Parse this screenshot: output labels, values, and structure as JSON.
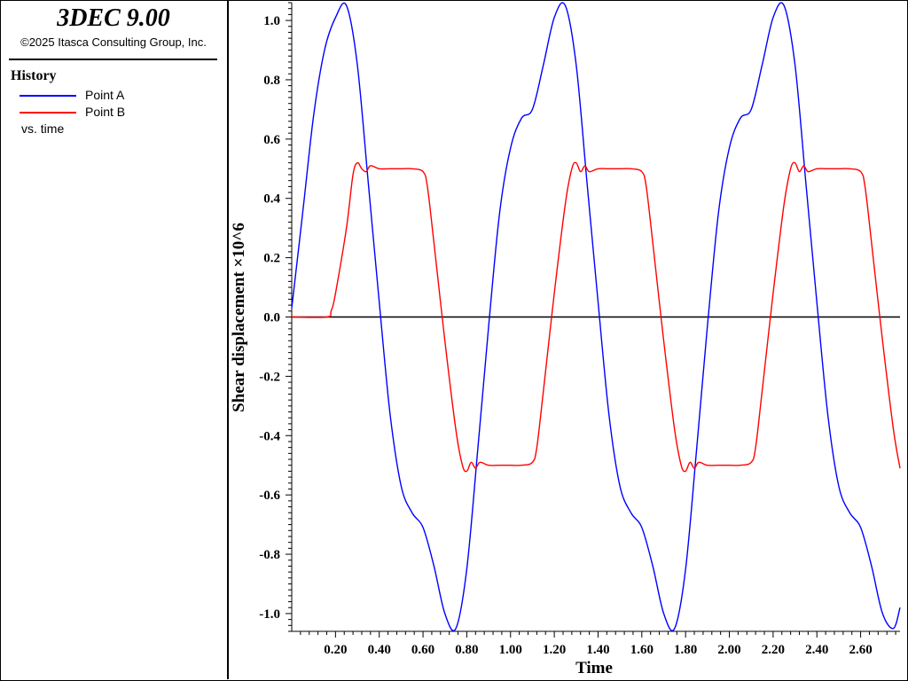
{
  "header": {
    "app_title": "3DEC 9.00",
    "copyright": "©2025 Itasca Consulting Group, Inc."
  },
  "legend": {
    "title": "History",
    "items": [
      {
        "label": "Point A",
        "color": "#0000ff"
      },
      {
        "label": "Point B",
        "color": "#ff0000"
      }
    ],
    "vs_label": "vs. time"
  },
  "chart_data": {
    "type": "line",
    "xlabel": "Time",
    "ylabel": "Shear displacement ×10^6",
    "xlim": [
      0.0,
      2.78
    ],
    "ylim": [
      -1.06,
      1.06
    ],
    "x_ticks": [
      "0.20",
      "0.40",
      "0.60",
      "0.80",
      "1.00",
      "1.20",
      "1.40",
      "1.60",
      "1.80",
      "2.00",
      "2.20",
      "2.40",
      "2.60"
    ],
    "y_ticks": [
      "1.0",
      "0.8",
      "0.6",
      "0.4",
      "0.2",
      "0.0",
      "-0.2",
      "-0.4",
      "-0.6",
      "-0.8",
      "-1.0"
    ],
    "zero_line": true,
    "grid": false,
    "series": [
      {
        "name": "Point A",
        "color": "#0000ff",
        "x": [
          0.0,
          0.05,
          0.1,
          0.15,
          0.2,
          0.25,
          0.3,
          0.35,
          0.4,
          0.45,
          0.5,
          0.55,
          0.6,
          0.65,
          0.7,
          0.75,
          0.8,
          0.85,
          0.9,
          0.95,
          1.0,
          1.05,
          1.1,
          1.15,
          1.2,
          1.25,
          1.3,
          1.35,
          1.4,
          1.45,
          1.5,
          1.55,
          1.6,
          1.65,
          1.7,
          1.75,
          1.8,
          1.85,
          1.9,
          1.95,
          2.0,
          2.05,
          2.1,
          2.15,
          2.2,
          2.25,
          2.3,
          2.35,
          2.4,
          2.45,
          2.5,
          2.55,
          2.6,
          2.65,
          2.7,
          2.75,
          2.78
        ],
        "values": [
          0.03,
          0.35,
          0.68,
          0.9,
          1.01,
          1.05,
          0.85,
          0.45,
          0.05,
          -0.33,
          -0.57,
          -0.66,
          -0.71,
          -0.84,
          -1.0,
          -1.05,
          -0.85,
          -0.45,
          -0.03,
          0.35,
          0.57,
          0.67,
          0.7,
          0.85,
          1.01,
          1.05,
          0.85,
          0.45,
          0.05,
          -0.33,
          -0.57,
          -0.66,
          -0.71,
          -0.84,
          -1.0,
          -1.05,
          -0.85,
          -0.45,
          -0.03,
          0.35,
          0.57,
          0.67,
          0.7,
          0.85,
          1.01,
          1.05,
          0.85,
          0.45,
          0.05,
          -0.33,
          -0.57,
          -0.66,
          -0.71,
          -0.84,
          -1.0,
          -1.05,
          -0.98
        ]
      },
      {
        "name": "Point B",
        "color": "#ff0000",
        "x": [
          0.0,
          0.16,
          0.18,
          0.2,
          0.25,
          0.28,
          0.3,
          0.32,
          0.34,
          0.36,
          0.4,
          0.45,
          0.5,
          0.55,
          0.6,
          0.62,
          0.65,
          0.7,
          0.75,
          0.78,
          0.8,
          0.82,
          0.84,
          0.86,
          0.9,
          0.95,
          1.0,
          1.05,
          1.1,
          1.12,
          1.15,
          1.2,
          1.25,
          1.28,
          1.3,
          1.32,
          1.34,
          1.36,
          1.4,
          1.45,
          1.5,
          1.55,
          1.6,
          1.62,
          1.65,
          1.7,
          1.75,
          1.78,
          1.8,
          1.82,
          1.84,
          1.86,
          1.9,
          1.95,
          2.0,
          2.05,
          2.1,
          2.12,
          2.15,
          2.2,
          2.25,
          2.28,
          2.3,
          2.32,
          2.34,
          2.36,
          2.4,
          2.45,
          2.5,
          2.55,
          2.6,
          2.62,
          2.65,
          2.7,
          2.75,
          2.78
        ],
        "values": [
          0.0,
          0.0,
          0.02,
          0.08,
          0.3,
          0.48,
          0.52,
          0.5,
          0.49,
          0.51,
          0.5,
          0.5,
          0.5,
          0.5,
          0.49,
          0.44,
          0.25,
          -0.08,
          -0.38,
          -0.5,
          -0.52,
          -0.49,
          -0.51,
          -0.49,
          -0.5,
          -0.5,
          -0.5,
          -0.5,
          -0.49,
          -0.44,
          -0.25,
          0.08,
          0.38,
          0.5,
          0.52,
          0.49,
          0.51,
          0.49,
          0.5,
          0.5,
          0.5,
          0.5,
          0.49,
          0.44,
          0.25,
          -0.08,
          -0.38,
          -0.5,
          -0.52,
          -0.49,
          -0.51,
          -0.49,
          -0.5,
          -0.5,
          -0.5,
          -0.5,
          -0.49,
          -0.44,
          -0.25,
          0.08,
          0.38,
          0.5,
          0.52,
          0.49,
          0.51,
          0.49,
          0.5,
          0.5,
          0.5,
          0.5,
          0.49,
          0.44,
          0.25,
          -0.08,
          -0.38,
          -0.51
        ]
      }
    ]
  }
}
